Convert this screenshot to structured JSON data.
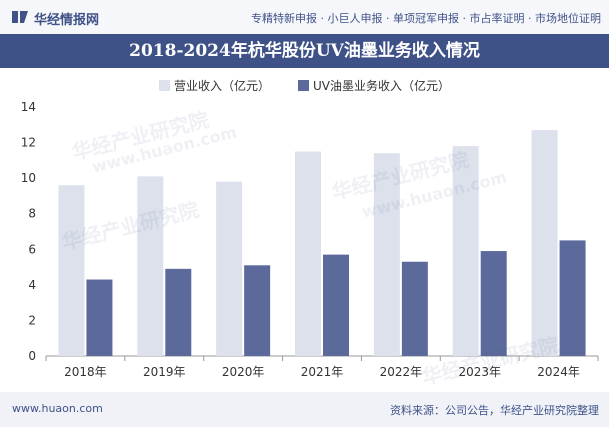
{
  "header": {
    "brand": "华经情报网",
    "tagline": "专精特新申报 · 小巨人申报 · 单项冠军申报 · 市占率证明 · 市场地位证明"
  },
  "footer": {
    "website": "www.huaon.com",
    "source": "资料来源：公司公告，华经产业研究院整理"
  },
  "watermark": {
    "text": "华经产业研究院",
    "url": "www.huaon.com"
  },
  "colors": {
    "header_bg": "#3f5288",
    "series1": "#dde1ec",
    "series2": "#5b6a9a"
  },
  "chart_data": {
    "type": "bar",
    "title": "2018-2024年杭华股份UV油墨业务收入情况",
    "categories": [
      "2018年",
      "2019年",
      "2020年",
      "2021年",
      "2022年",
      "2023年",
      "2024年"
    ],
    "series": [
      {
        "name": "营业收入（亿元）",
        "values": [
          9.6,
          10.1,
          9.8,
          11.5,
          11.4,
          11.8,
          12.7
        ],
        "color": "#dde1ec"
      },
      {
        "name": "UV油墨业务收入（亿元）",
        "values": [
          4.3,
          4.9,
          5.1,
          5.7,
          5.3,
          5.9,
          6.5
        ],
        "color": "#5b6a9a"
      }
    ],
    "ylim": [
      0,
      14
    ],
    "yticks": [
      0,
      2,
      4,
      6,
      8,
      10,
      12,
      14
    ],
    "grid": false,
    "legend": "top-center"
  }
}
